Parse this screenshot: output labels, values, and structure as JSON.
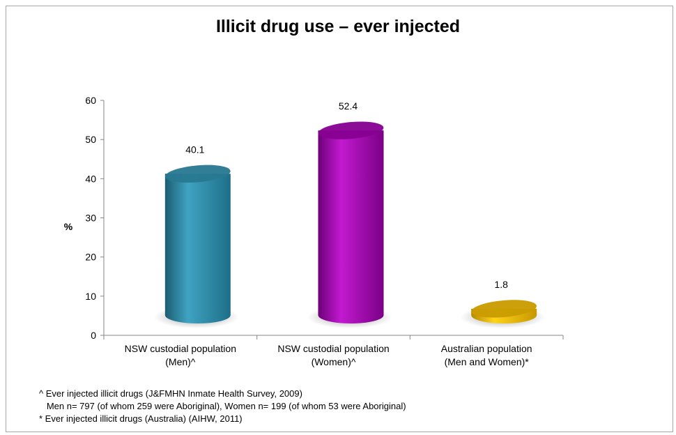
{
  "chart_data": {
    "type": "bar",
    "title": "Illicit drug use – ever injected",
    "ylabel": "%",
    "xlabel": "",
    "ylim": [
      0,
      60
    ],
    "yticks": [
      0,
      10,
      20,
      30,
      40,
      50,
      60
    ],
    "grid": false,
    "categories": [
      [
        "NSW custodial population",
        "(Men)^"
      ],
      [
        "NSW custodial population",
        "(Women)^"
      ],
      [
        "Australian population",
        "(Men and Women)*"
      ]
    ],
    "values": [
      40.1,
      52.4,
      1.8
    ],
    "data_labels": [
      "40.1",
      "52.4",
      "1.8"
    ],
    "colors": [
      "#2e8aa6",
      "#9b00a8",
      "#e8b300"
    ]
  },
  "footnotes": [
    "^ Ever injected illicit drugs (J&FMHN Inmate Health Survey, 2009)",
    "   Men n= 797 (of whom 259 were Aboriginal), Women n= 199 (of whom 53 were Aboriginal)",
    "* Ever injected illicit drugs (Australia) (AIHW, 2011)"
  ]
}
